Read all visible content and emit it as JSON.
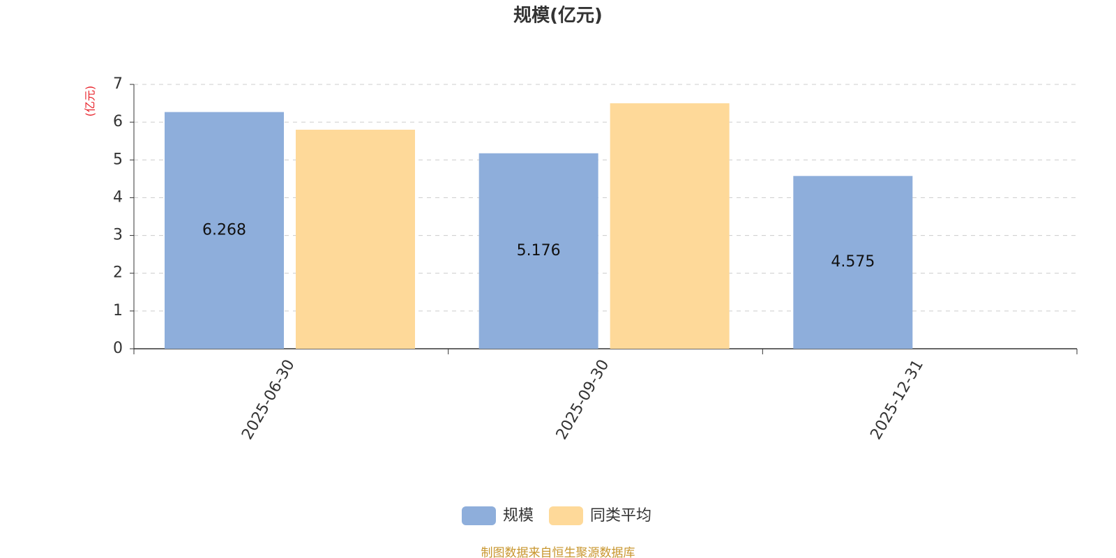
{
  "chart_data": {
    "type": "bar",
    "title": "规模(亿元)",
    "y_label": "(亿元)",
    "categories": [
      "2025-06-30",
      "2025-09-30",
      "2025-12-31"
    ],
    "series": [
      {
        "name": "规模",
        "color": "#8eaedb",
        "values": [
          6.268,
          5.176,
          4.575
        ],
        "data_labels": true
      },
      {
        "name": "同类平均",
        "color": "#fed999",
        "values": [
          5.8,
          6.5,
          null
        ],
        "data_labels": false
      }
    ],
    "ylim": [
      0,
      7
    ],
    "yticks": [
      0,
      1,
      2,
      3,
      4,
      5,
      6,
      7
    ],
    "grid": true,
    "legend": "bottom",
    "source": "制图数据来自恒生聚源数据库"
  }
}
